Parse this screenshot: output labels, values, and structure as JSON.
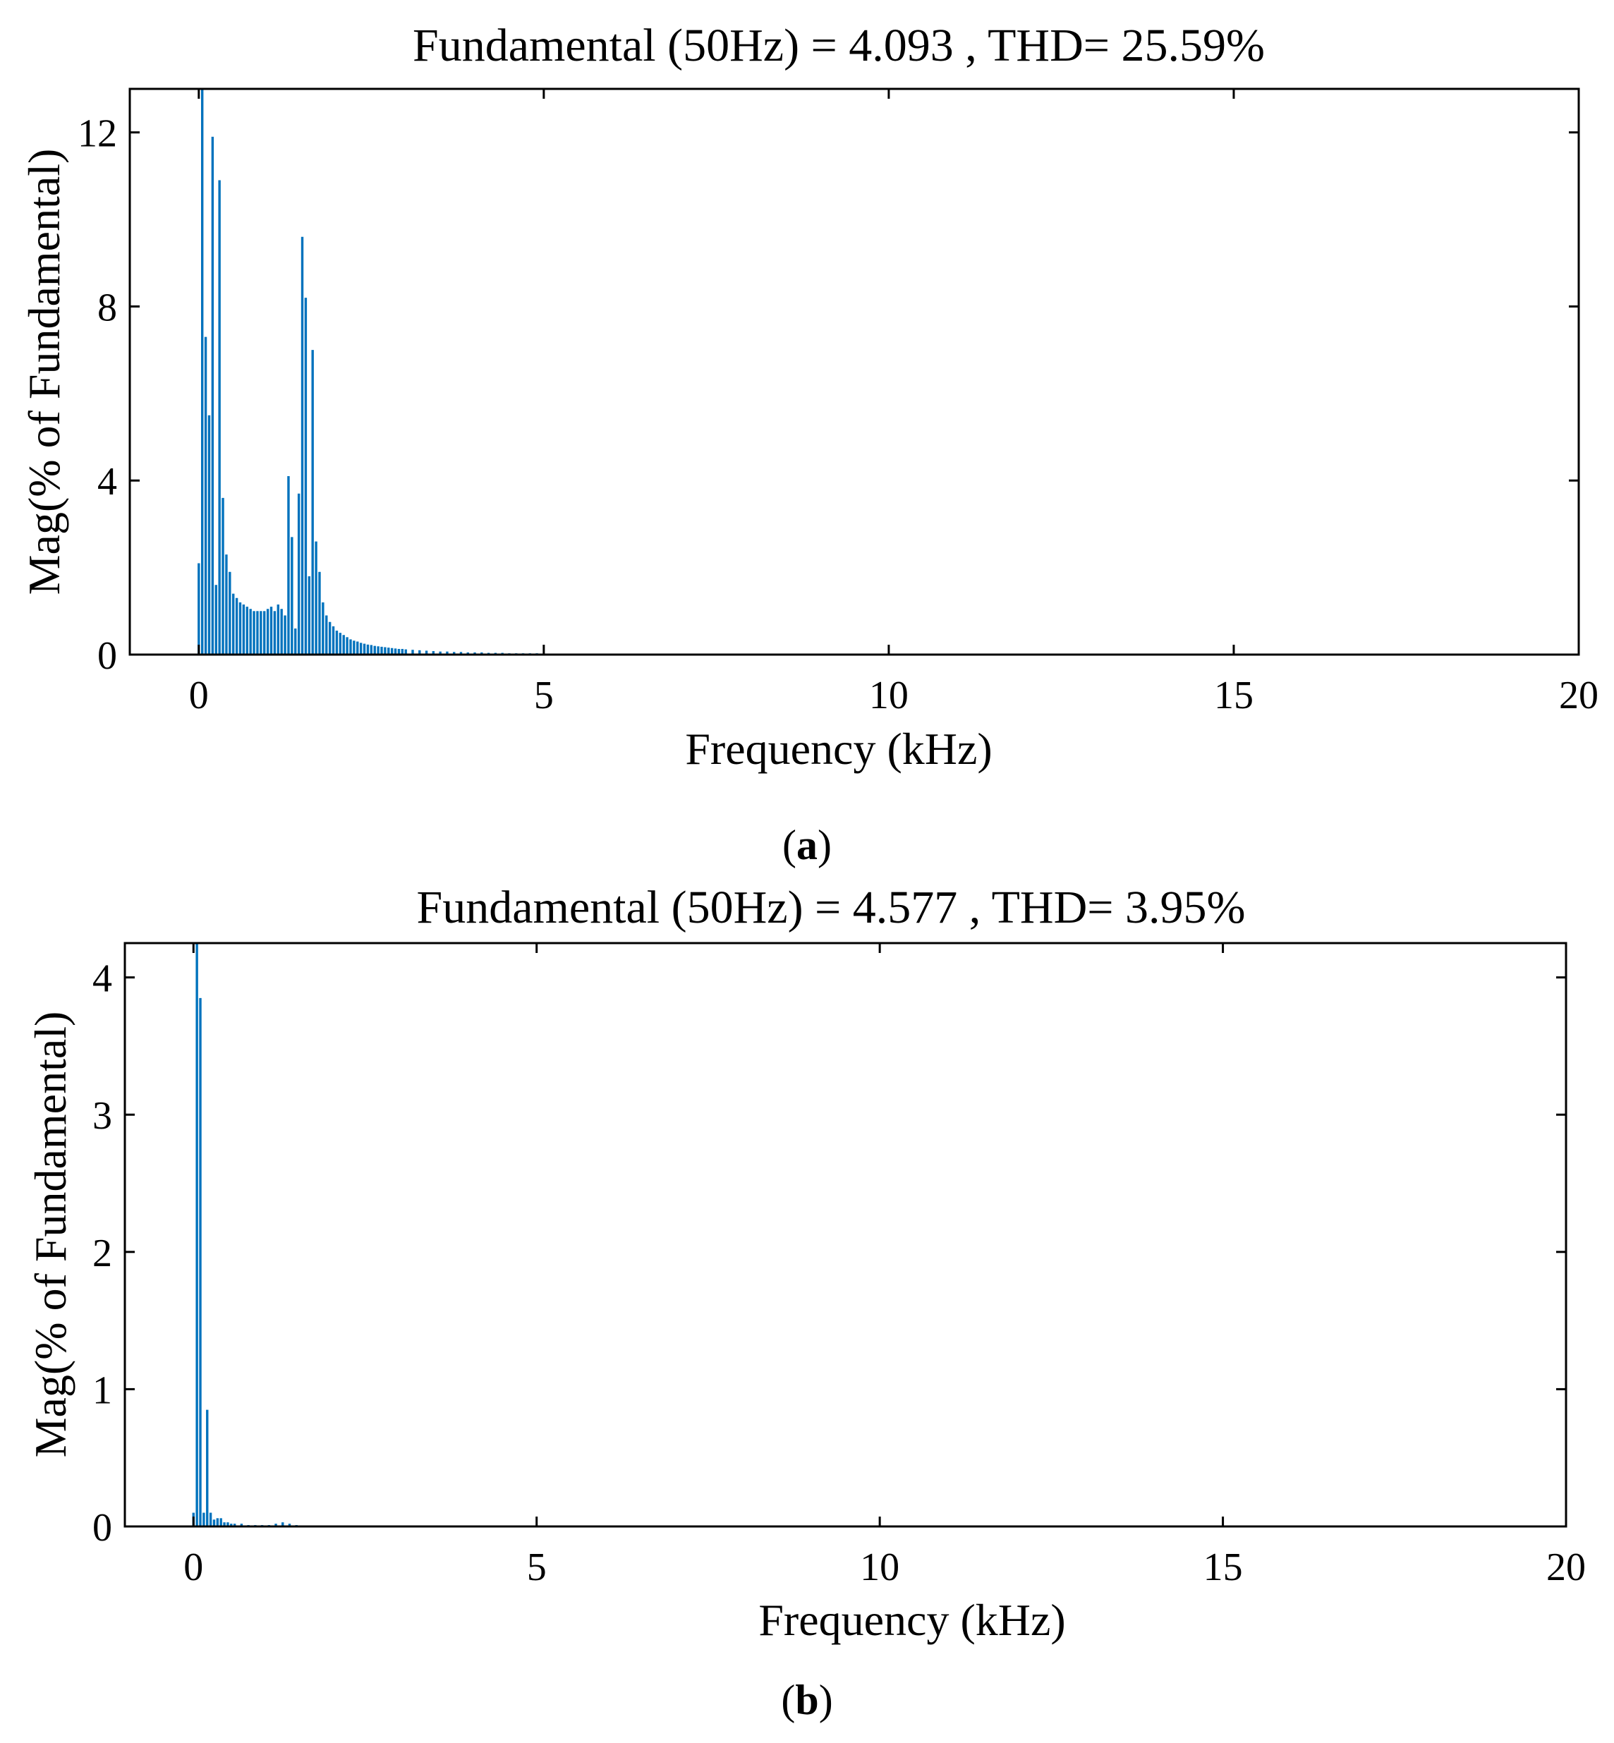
{
  "chart_data": [
    {
      "type": "bar",
      "panel_label": "a",
      "title": "Fundamental (50Hz) = 4.093 , THD= 25.59%",
      "xlabel": "Frequency (kHz)",
      "ylabel": "Mag(% of Fundamental)",
      "xlim": [
        -1,
        20
      ],
      "ylim": [
        0,
        13
      ],
      "xticks": [
        0,
        5,
        10,
        15,
        20
      ],
      "yticks": [
        0,
        4,
        8,
        12
      ],
      "xtick_labels": [
        "0",
        "5",
        "10",
        "15",
        "20"
      ],
      "ytick_labels": [
        "0",
        "4",
        "8",
        "12"
      ],
      "grid": false,
      "bar_color": "#0072BD",
      "x": [
        0,
        0.05,
        0.1,
        0.15,
        0.2,
        0.25,
        0.3,
        0.35,
        0.4,
        0.45,
        0.5,
        0.55,
        0.6,
        0.65,
        0.7,
        0.75,
        0.8,
        0.85,
        0.9,
        0.95,
        1.0,
        1.05,
        1.1,
        1.15,
        1.2,
        1.25,
        1.3,
        1.35,
        1.4,
        1.45,
        1.5,
        1.55,
        1.6,
        1.65,
        1.7,
        1.75,
        1.8,
        1.85,
        1.9,
        1.95,
        2.0,
        2.05,
        2.1,
        2.15,
        2.2,
        2.25,
        2.3,
        2.35,
        2.4,
        2.45,
        2.5,
        2.55,
        2.6,
        2.65,
        2.7,
        2.75,
        2.8,
        2.85,
        2.9,
        2.95,
        3.0,
        3.1,
        3.2,
        3.3,
        3.4,
        3.5,
        3.6,
        3.7,
        3.8,
        3.9,
        4.0,
        4.1,
        4.2,
        4.3,
        4.4,
        4.5,
        4.6,
        4.7,
        4.8,
        4.9,
        5.0
      ],
      "values": [
        2.1,
        13.0,
        7.3,
        5.5,
        11.9,
        1.6,
        10.9,
        3.6,
        2.3,
        1.9,
        1.4,
        1.3,
        1.2,
        1.15,
        1.1,
        1.05,
        1.0,
        1.0,
        1.0,
        1.0,
        1.05,
        1.1,
        1.0,
        1.15,
        1.05,
        0.9,
        4.1,
        2.7,
        0.6,
        3.7,
        9.6,
        8.2,
        1.8,
        7.0,
        2.6,
        1.9,
        1.2,
        0.9,
        0.75,
        0.65,
        0.55,
        0.5,
        0.45,
        0.4,
        0.35,
        0.32,
        0.3,
        0.27,
        0.25,
        0.23,
        0.22,
        0.2,
        0.19,
        0.18,
        0.17,
        0.16,
        0.15,
        0.14,
        0.13,
        0.13,
        0.12,
        0.11,
        0.1,
        0.09,
        0.08,
        0.07,
        0.07,
        0.06,
        0.06,
        0.05,
        0.05,
        0.05,
        0.04,
        0.04,
        0.04,
        0.03,
        0.03,
        0.03,
        0.03,
        0.03,
        0.02
      ]
    },
    {
      "type": "bar",
      "panel_label": "b",
      "title": "Fundamental (50Hz) = 4.577 , THD= 3.95%",
      "xlabel": "Frequency (kHz)",
      "ylabel": "Mag(% of Fundamental)",
      "xlim": [
        -1,
        20
      ],
      "ylim": [
        0,
        4.25
      ],
      "xticks": [
        0,
        5,
        10,
        15,
        20
      ],
      "yticks": [
        0,
        1,
        2,
        3,
        4
      ],
      "xtick_labels": [
        "0",
        "5",
        "10",
        "15",
        "20"
      ],
      "ytick_labels": [
        "0",
        "1",
        "2",
        "3",
        "4"
      ],
      "grid": false,
      "bar_color": "#0072BD",
      "x": [
        0,
        0.05,
        0.1,
        0.15,
        0.2,
        0.25,
        0.3,
        0.35,
        0.4,
        0.45,
        0.5,
        0.55,
        0.6,
        0.7,
        0.8,
        0.9,
        1.0,
        1.1,
        1.2,
        1.3,
        1.4,
        1.5
      ],
      "values": [
        0.1,
        4.25,
        3.85,
        0.1,
        0.85,
        0.1,
        0.05,
        0.06,
        0.06,
        0.03,
        0.03,
        0.02,
        0.02,
        0.02,
        0.01,
        0.01,
        0.01,
        0.01,
        0.02,
        0.03,
        0.02,
        0.01
      ]
    }
  ]
}
